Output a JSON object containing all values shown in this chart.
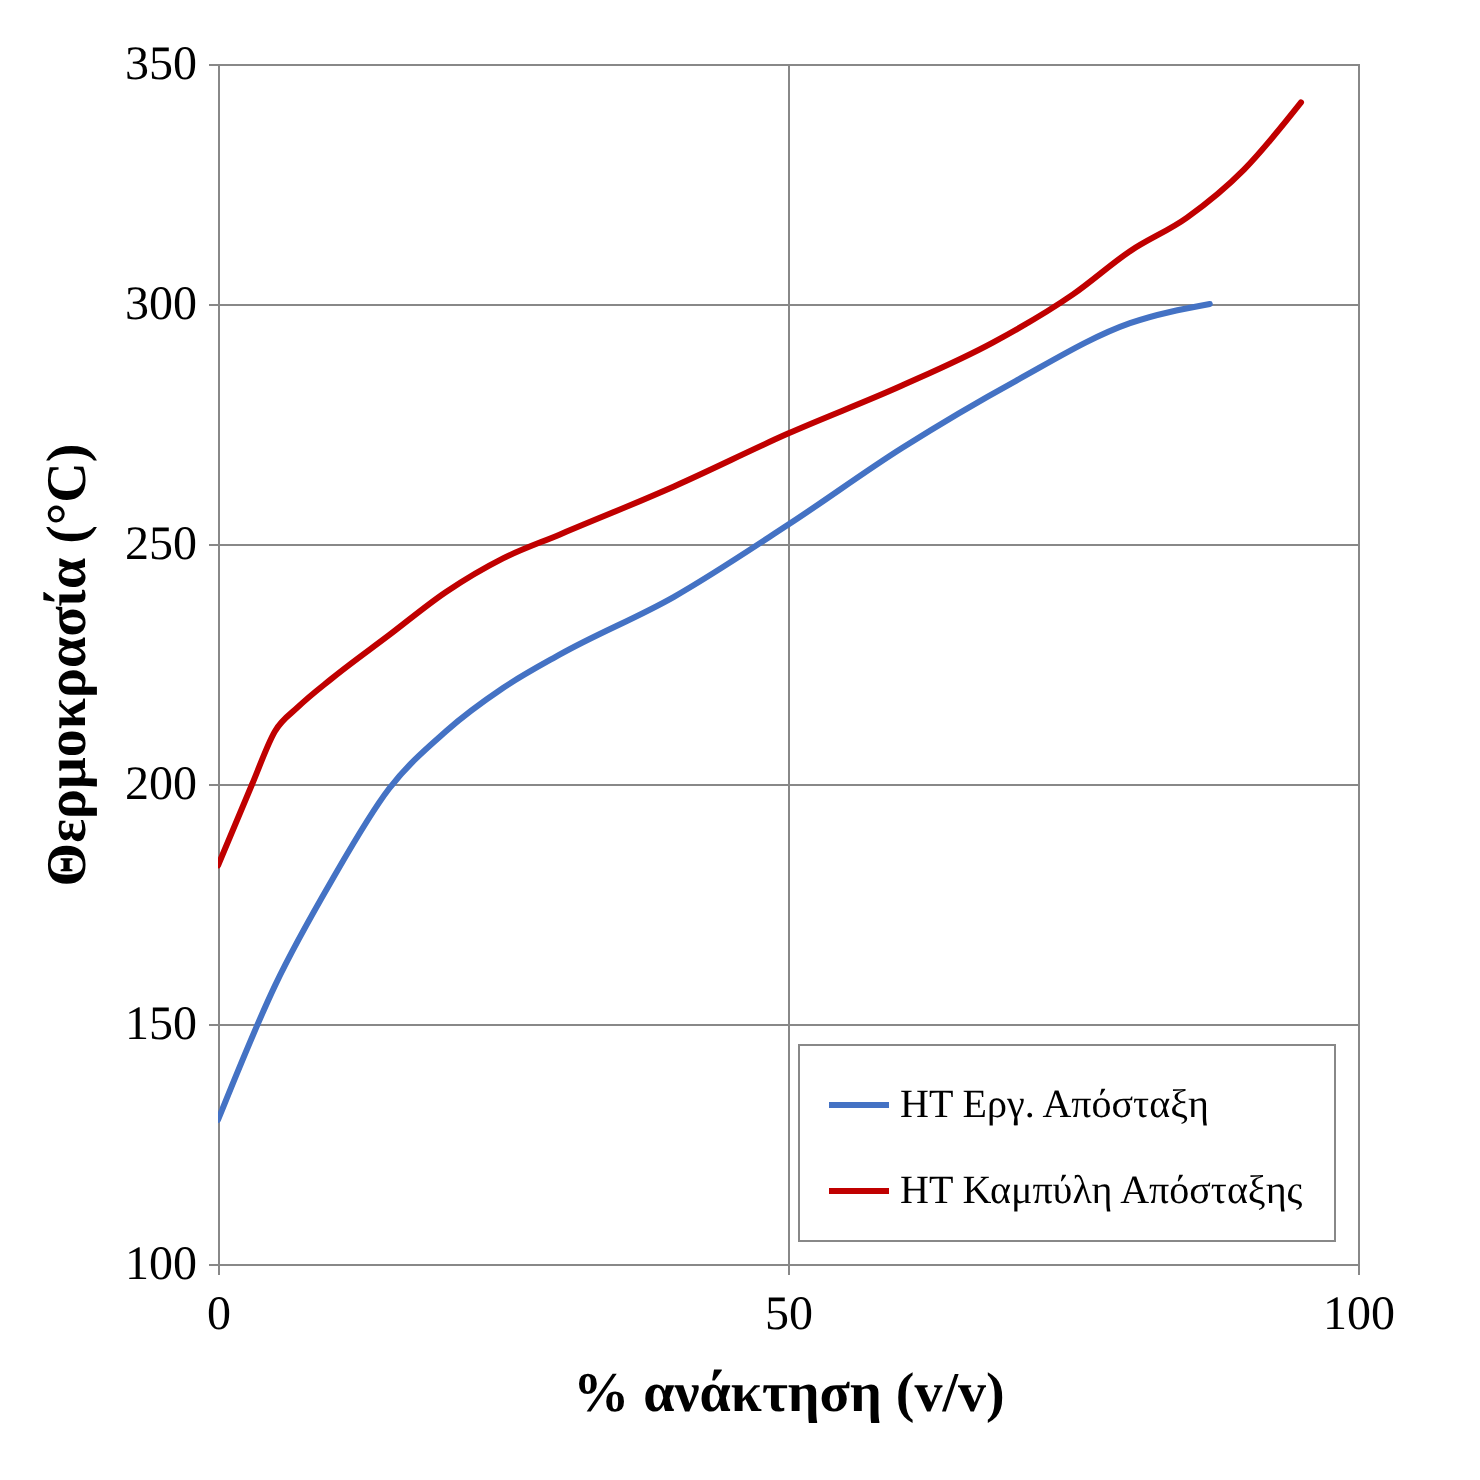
{
  "chart_data": {
    "type": "line",
    "xlabel": "% ανάκτηση (v/v)",
    "ylabel": "Θερμοκρασία  (°C)",
    "xlim": [
      0,
      100
    ],
    "xticks": [
      0,
      50,
      100
    ],
    "ylim": [
      100,
      350
    ],
    "yticks": [
      100,
      150,
      200,
      250,
      300,
      350
    ],
    "grid": true,
    "legend": "bottom right",
    "series": [
      {
        "name": "ΗΤ Εργ. Απόσταξη",
        "color": "#4472c4",
        "x": [
          0,
          5,
          10,
          15,
          20,
          25,
          30,
          40,
          50,
          60,
          70,
          80,
          87
        ],
        "values": [
          130,
          158,
          180,
          199,
          211,
          220,
          227,
          239,
          254,
          270,
          284,
          296,
          300
        ]
      },
      {
        "name": "ΗΤ Καμπύλη Απόσταξης",
        "color": "#c00000",
        "x": [
          0,
          3,
          5,
          7,
          10,
          15,
          20,
          25,
          30,
          40,
          50,
          60,
          68,
          75,
          80,
          85,
          90,
          95
        ],
        "values": [
          183,
          200,
          211,
          216,
          222,
          231,
          240,
          247,
          252,
          262,
          273,
          283,
          292,
          302,
          311,
          318,
          328,
          342
        ]
      }
    ]
  }
}
